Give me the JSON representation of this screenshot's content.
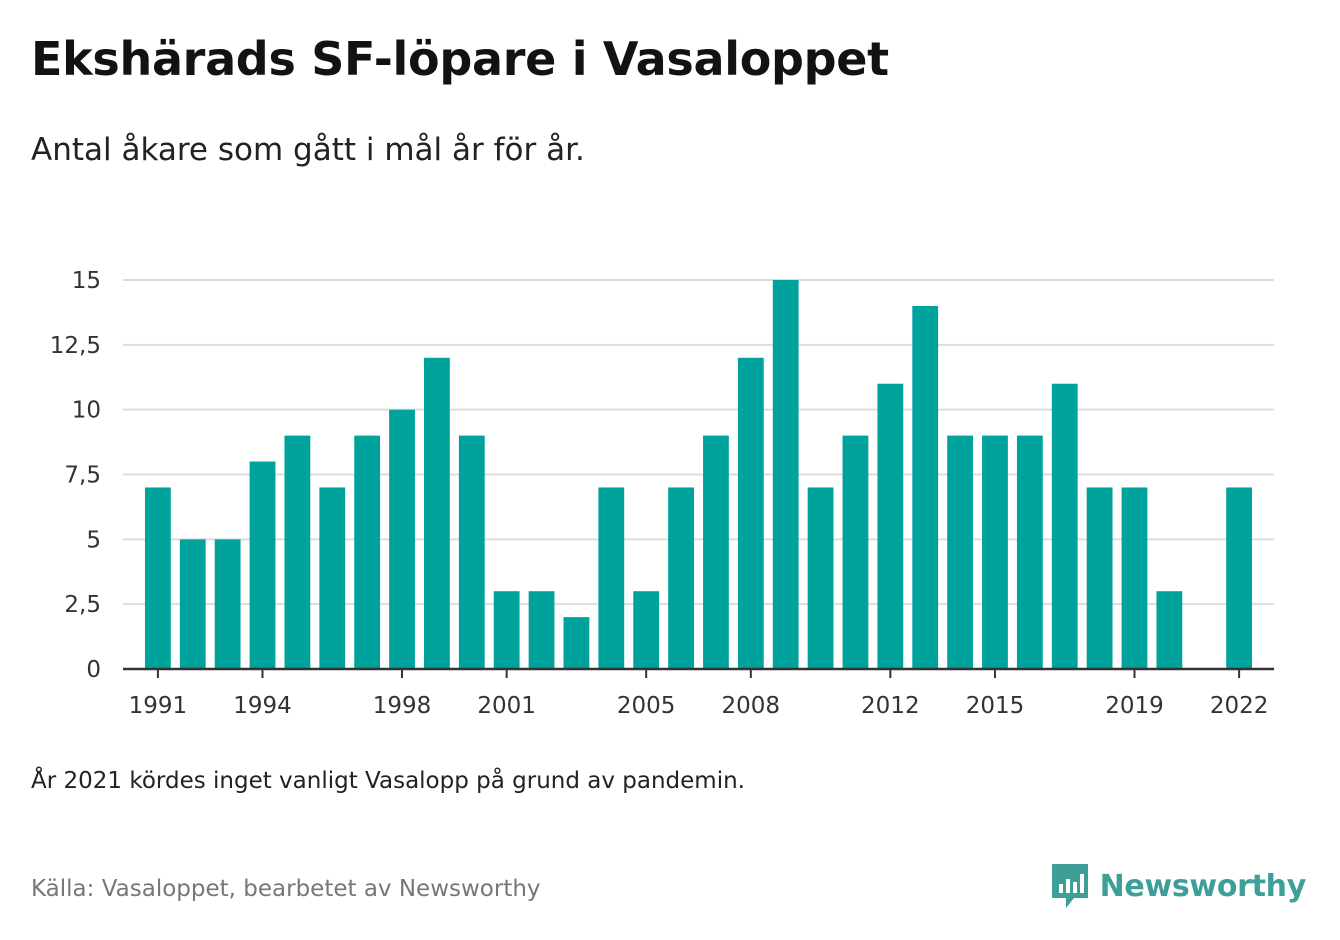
{
  "title": "Ekshärads SF-löpare i Vasaloppet",
  "subtitle": "Antal åkare som gått i mål år för år.",
  "note": "År 2021 kördes inget vanligt Vasalopp på grund av pandemin.",
  "source": "Källa: Vasaloppet, bearbetet av Newsworthy",
  "brand": {
    "name": "Newsworthy",
    "icon": "newsworthy-logo-icon",
    "color": "#3d9f97"
  },
  "chart_data": {
    "type": "bar",
    "title": "Ekshärads SF-löpare i Vasaloppet",
    "subtitle": "Antal åkare som gått i mål år för år.",
    "x": [
      1991,
      1992,
      1993,
      1994,
      1995,
      1996,
      1997,
      1998,
      1999,
      2000,
      2001,
      2002,
      2003,
      2004,
      2005,
      2006,
      2007,
      2008,
      2009,
      2010,
      2011,
      2012,
      2013,
      2014,
      2015,
      2016,
      2017,
      2018,
      2019,
      2020,
      2021,
      2022
    ],
    "values": [
      7,
      5,
      5,
      8,
      9,
      7,
      9,
      10,
      12,
      9,
      3,
      3,
      2,
      7,
      3,
      7,
      9,
      12,
      15,
      7,
      9,
      11,
      14,
      9,
      9,
      9,
      11,
      7,
      7,
      3,
      null,
      7
    ],
    "x_tick_labels": [
      "1991",
      "1994",
      "1998",
      "2001",
      "2005",
      "2008",
      "2012",
      "2015",
      "2019",
      "2022"
    ],
    "y_ticks": [
      0,
      2.5,
      5,
      7.5,
      10,
      12.5,
      15
    ],
    "y_tick_labels": [
      "0",
      "2,5",
      "5",
      "7,5",
      "10",
      "12,5",
      "15"
    ],
    "ylim": [
      0,
      15
    ],
    "xlabel": "",
    "ylabel": "",
    "grid": true,
    "bar_color": "#00a39b",
    "grid_color": "#dddddd",
    "axis_color": "#333333"
  }
}
